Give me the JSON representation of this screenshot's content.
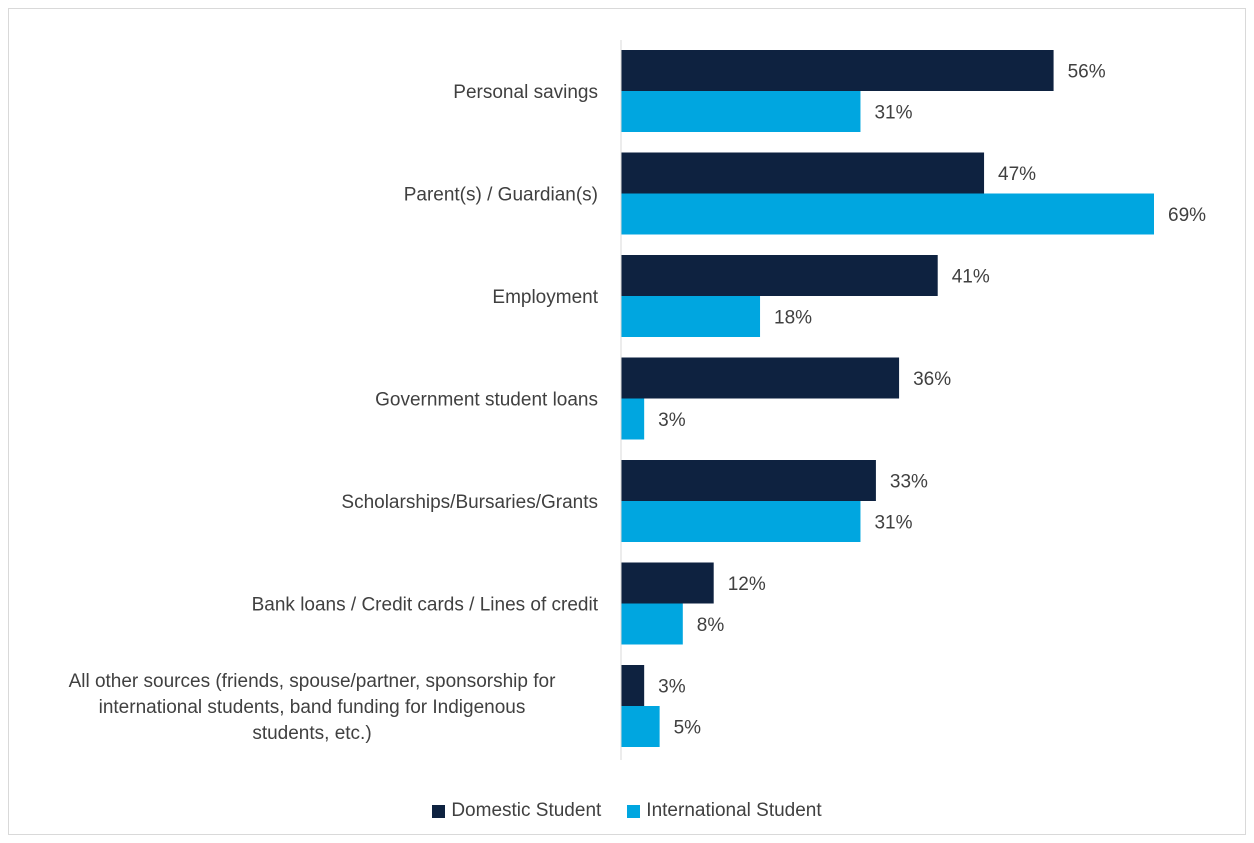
{
  "chart_data": {
    "type": "bar",
    "orientation": "horizontal",
    "categories": [
      "Personal savings",
      "Parent(s) / Guardian(s)",
      "Employment",
      "Government student loans",
      "Scholarships/Bursaries/Grants",
      "Bank loans / Credit cards / Lines of credit",
      "All other sources (friends, spouse/partner, sponsorship for international students, band funding for Indigenous students, etc.)"
    ],
    "category_lines": [
      [
        "Personal savings"
      ],
      [
        "Parent(s) / Guardian(s)"
      ],
      [
        "Employment"
      ],
      [
        "Government student loans"
      ],
      [
        "Scholarships/Bursaries/Grants"
      ],
      [
        "Bank loans / Credit cards / Lines of credit"
      ],
      [
        "All other sources (friends, spouse/partner, sponsorship for",
        "international students, band funding for Indigenous",
        "students, etc.)"
      ]
    ],
    "series": [
      {
        "name": "Domestic Student",
        "color": "#0e2240",
        "values": [
          56,
          47,
          41,
          36,
          33,
          12,
          3
        ],
        "labels": [
          "56%",
          "47%",
          "41%",
          "36%",
          "33%",
          "12%",
          "3%"
        ]
      },
      {
        "name": "International Student",
        "color": "#00a6e0",
        "values": [
          31,
          69,
          18,
          3,
          31,
          8,
          5
        ],
        "labels": [
          "31%",
          "69%",
          "18%",
          "3%",
          "31%",
          "8%",
          "5%"
        ]
      }
    ],
    "xlim": [
      0,
      100
    ],
    "grid": false,
    "legend_position": "bottom"
  }
}
